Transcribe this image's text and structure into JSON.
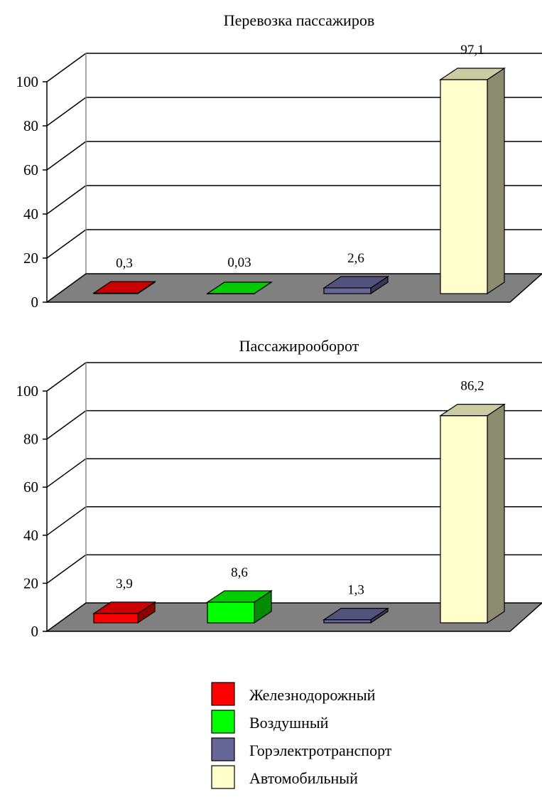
{
  "chart_data": [
    {
      "type": "bar",
      "title": "Перевозка пассажиров",
      "categories": [
        "Железнодорожный",
        "Воздушный",
        "Горэлектротранспорт",
        "Автомобильный"
      ],
      "values": [
        0.3,
        0.03,
        2.6,
        97.1
      ],
      "value_labels": [
        "0,3",
        "0,03",
        "2,6",
        "97,1"
      ],
      "yticks": [
        "0",
        "20",
        "40",
        "60",
        "80",
        "100"
      ],
      "ylim": [
        0,
        100
      ],
      "grid": true,
      "style": "3d"
    },
    {
      "type": "bar",
      "title": "Пассажирооборот",
      "categories": [
        "Железнодорожный",
        "Воздушный",
        "Горэлектротранспорт",
        "Автомобильный"
      ],
      "values": [
        3.9,
        8.6,
        1.3,
        86.2
      ],
      "value_labels": [
        "3,9",
        "8,6",
        "1,3",
        "86,2"
      ],
      "yticks": [
        "0",
        "20",
        "40",
        "60",
        "80",
        "100"
      ],
      "ylim": [
        0,
        100
      ],
      "grid": true,
      "style": "3d"
    }
  ],
  "legend": {
    "placement": "bottom",
    "items": [
      {
        "label": "Железнодорожный",
        "color": "#ff0000"
      },
      {
        "label": "Воздушный",
        "color": "#00ff00"
      },
      {
        "label": "Горэлектротранспорт",
        "color": "#666699"
      },
      {
        "label": "Автомобильный",
        "color": "#ffffcc"
      }
    ]
  },
  "colors": {
    "floor": "#808080",
    "grid": "#000000"
  }
}
